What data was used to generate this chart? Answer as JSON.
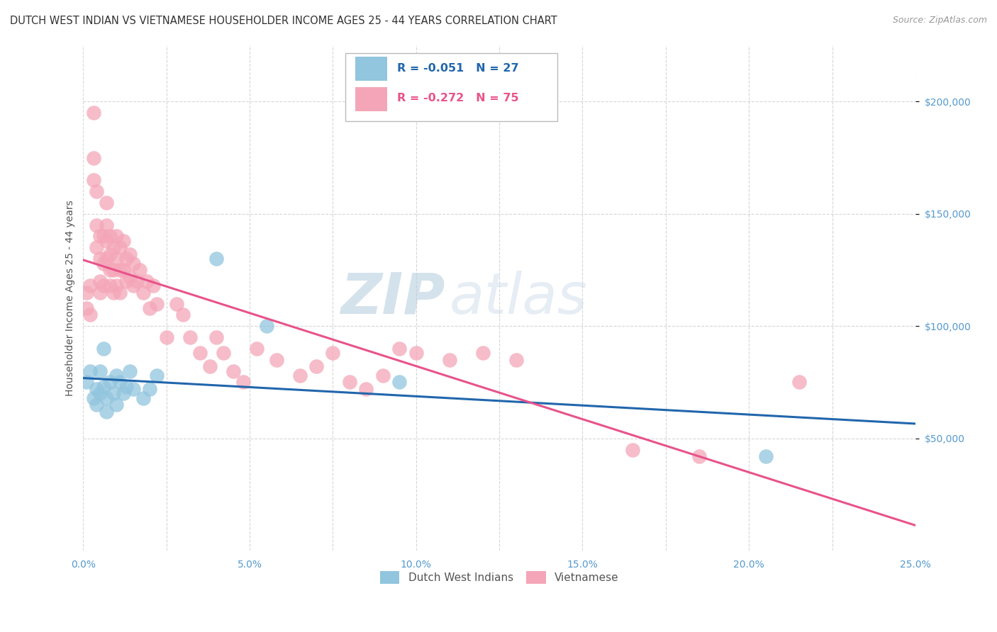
{
  "title": "DUTCH WEST INDIAN VS VIETNAMESE HOUSEHOLDER INCOME AGES 25 - 44 YEARS CORRELATION CHART",
  "source": "Source: ZipAtlas.com",
  "ylabel": "Householder Income Ages 25 - 44 years",
  "xlim": [
    0.0,
    0.25
  ],
  "ylim": [
    0,
    225000
  ],
  "xtick_labels": [
    "0.0%",
    "",
    "5.0%",
    "",
    "10.0%",
    "",
    "15.0%",
    "",
    "20.0%",
    "",
    "25.0%"
  ],
  "xtick_vals": [
    0.0,
    0.025,
    0.05,
    0.075,
    0.1,
    0.125,
    0.15,
    0.175,
    0.2,
    0.225,
    0.25
  ],
  "ytick_vals": [
    50000,
    100000,
    150000,
    200000
  ],
  "ytick_labels": [
    "$50,000",
    "$100,000",
    "$150,000",
    "$200,000"
  ],
  "legend_blue_label2": "Dutch West Indians",
  "legend_pink_label2": "Vietnamese",
  "blue_color": "#92c5de",
  "pink_color": "#f4a6b8",
  "blue_line_color": "#2166ac",
  "pink_line_color": "#e8538a",
  "watermark_zip": "ZIP",
  "watermark_atlas": "atlas",
  "background_color": "#ffffff",
  "grid_color": "#cccccc",
  "blue_x": [
    0.001,
    0.002,
    0.003,
    0.004,
    0.004,
    0.005,
    0.005,
    0.006,
    0.006,
    0.007,
    0.007,
    0.008,
    0.009,
    0.01,
    0.01,
    0.011,
    0.012,
    0.013,
    0.014,
    0.015,
    0.018,
    0.02,
    0.022,
    0.04,
    0.055,
    0.095,
    0.205
  ],
  "blue_y": [
    75000,
    80000,
    68000,
    72000,
    65000,
    80000,
    70000,
    90000,
    73000,
    68000,
    62000,
    75000,
    70000,
    78000,
    65000,
    75000,
    70000,
    73000,
    80000,
    72000,
    68000,
    72000,
    78000,
    130000,
    100000,
    75000,
    42000
  ],
  "pink_x": [
    0.001,
    0.001,
    0.002,
    0.002,
    0.003,
    0.003,
    0.003,
    0.004,
    0.004,
    0.004,
    0.005,
    0.005,
    0.005,
    0.005,
    0.006,
    0.006,
    0.006,
    0.007,
    0.007,
    0.007,
    0.007,
    0.008,
    0.008,
    0.008,
    0.008,
    0.009,
    0.009,
    0.009,
    0.01,
    0.01,
    0.01,
    0.011,
    0.011,
    0.011,
    0.012,
    0.012,
    0.013,
    0.013,
    0.014,
    0.014,
    0.015,
    0.015,
    0.016,
    0.017,
    0.018,
    0.019,
    0.02,
    0.021,
    0.022,
    0.025,
    0.028,
    0.03,
    0.032,
    0.035,
    0.038,
    0.04,
    0.042,
    0.045,
    0.048,
    0.052,
    0.058,
    0.065,
    0.07,
    0.075,
    0.08,
    0.085,
    0.09,
    0.095,
    0.1,
    0.11,
    0.12,
    0.13,
    0.165,
    0.185,
    0.215
  ],
  "pink_y": [
    108000,
    115000,
    118000,
    105000,
    195000,
    165000,
    175000,
    145000,
    160000,
    135000,
    140000,
    130000,
    120000,
    115000,
    140000,
    128000,
    118000,
    155000,
    145000,
    138000,
    130000,
    140000,
    132000,
    125000,
    118000,
    135000,
    125000,
    115000,
    140000,
    130000,
    118000,
    135000,
    125000,
    115000,
    138000,
    125000,
    130000,
    120000,
    132000,
    122000,
    128000,
    118000,
    120000,
    125000,
    115000,
    120000,
    108000,
    118000,
    110000,
    95000,
    110000,
    105000,
    95000,
    88000,
    82000,
    95000,
    88000,
    80000,
    75000,
    90000,
    85000,
    78000,
    82000,
    88000,
    75000,
    72000,
    78000,
    90000,
    88000,
    85000,
    88000,
    85000,
    45000,
    42000,
    75000
  ]
}
